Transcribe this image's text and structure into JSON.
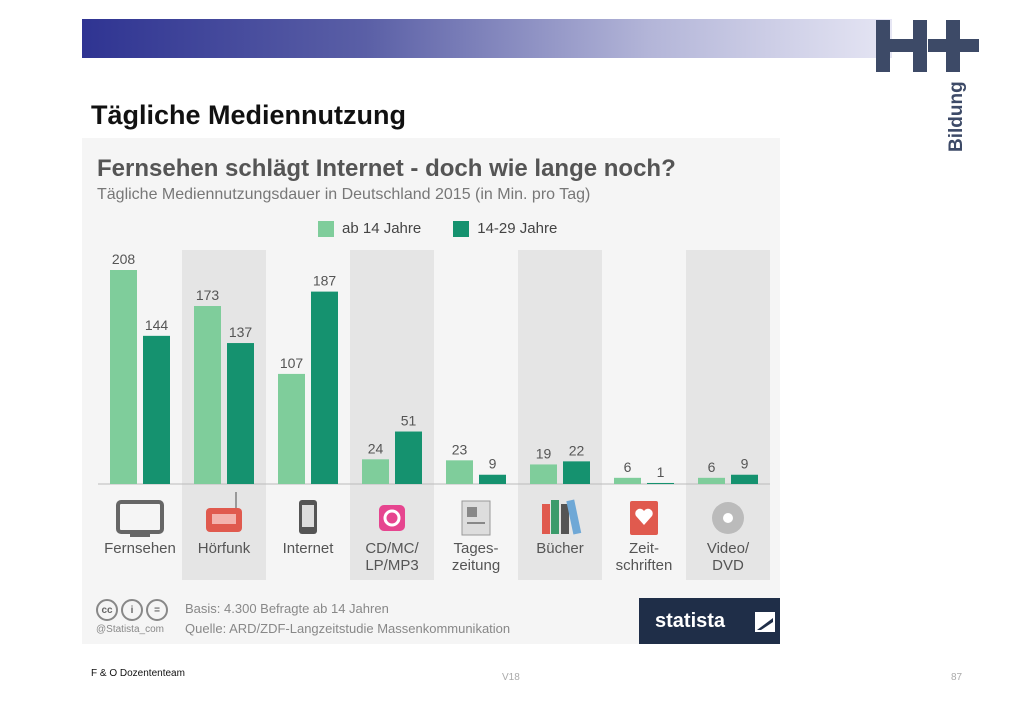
{
  "slide": {
    "title": "Tägliche Mediennutzung",
    "logo_text": "Bildung",
    "footer_left": "F & O Dozententeam",
    "footer_mid": "V18",
    "page_number": "87"
  },
  "source": {
    "basis": "Basis: 4.300 Befragte ab 14 Jahren",
    "quelle": "Quelle: ARD/ZDF-Langzeitstudie Massenkommunikation",
    "handle": "@Statista_com",
    "brand": "statista"
  },
  "colors": {
    "light_green": "#7fcd9b",
    "dark_green": "#15926f",
    "banner_dark": "#2f3492",
    "statista_bg": "#1f2e48"
  },
  "chart_data": {
    "type": "bar",
    "title": "Fernsehen schlägt Internet - doch wie lange noch?",
    "subtitle": "Tägliche Mediennutzungsdauer in Deutschland 2015 (in Min. pro Tag)",
    "categories": [
      "Fernsehen",
      "Hörfunk",
      "Internet",
      "CD/MC/\nLP/MP3",
      "Tages-\nzeitung",
      "Bücher",
      "Zeit-\nschriften",
      "Video/\nDVD"
    ],
    "icons": [
      "tv-icon",
      "radio-icon",
      "smartphone-icon",
      "music-player-icon",
      "newspaper-icon",
      "books-icon",
      "magazine-icon",
      "disc-icon"
    ],
    "series": [
      {
        "name": "ab 14 Jahre",
        "values": [
          208,
          173,
          107,
          24,
          23,
          19,
          6,
          6
        ]
      },
      {
        "name": "14-29 Jahre",
        "values": [
          144,
          137,
          187,
          51,
          9,
          22,
          1,
          9
        ]
      }
    ],
    "ylim": [
      0,
      208
    ],
    "legend_position": "top-center",
    "shaded_columns": [
      1,
      3,
      5,
      7
    ]
  }
}
